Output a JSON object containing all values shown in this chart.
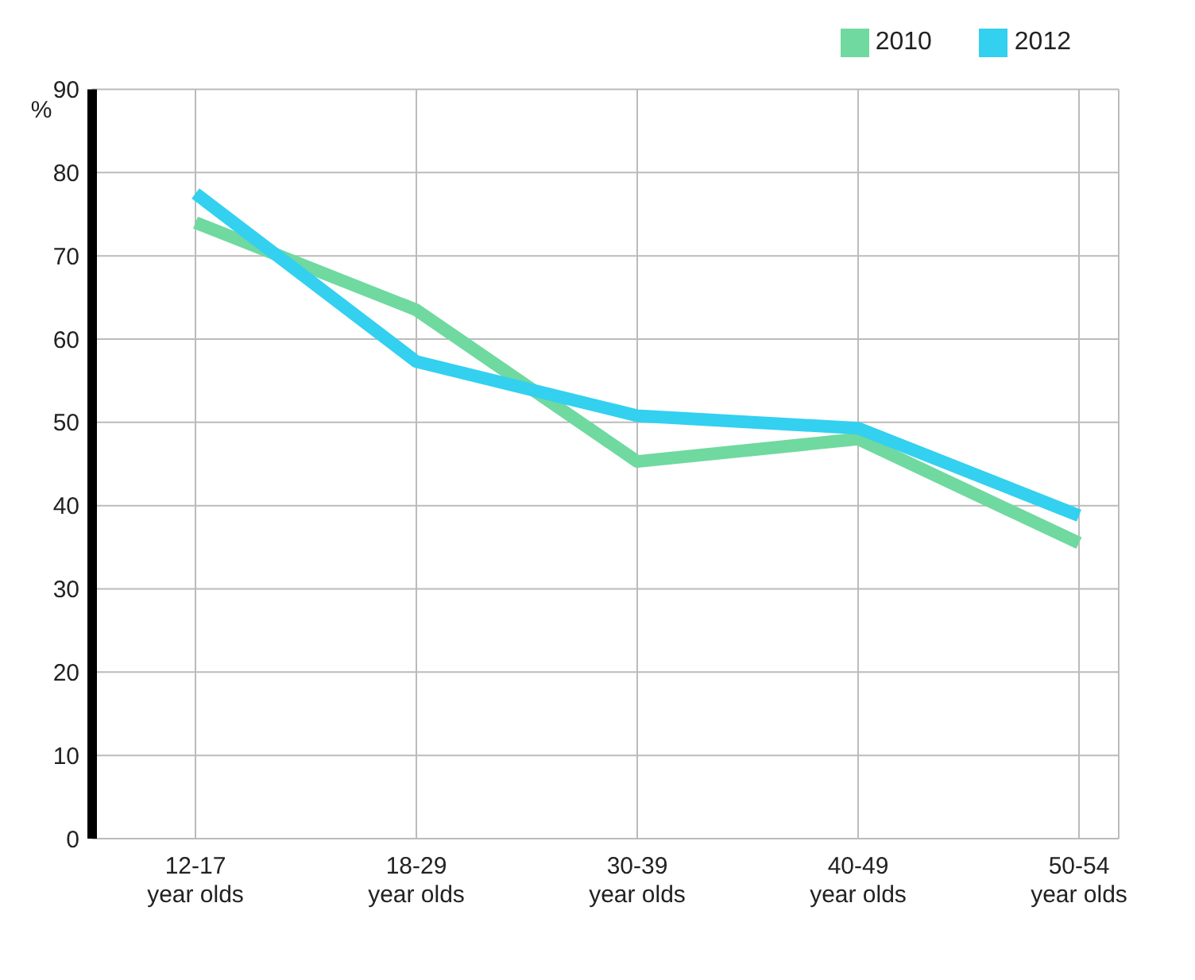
{
  "chart_data": {
    "type": "line",
    "ylabel": "%",
    "categories": [
      "12-17 year olds",
      "18-29 year olds",
      "30-39 year olds",
      "40-49 year olds",
      "50-54 year olds"
    ],
    "series": [
      {
        "name": "2010",
        "color": "#6fd9a0",
        "values": [
          74,
          63.5,
          45.3,
          48,
          35.5
        ]
      },
      {
        "name": "2012",
        "color": "#33d0f0",
        "values": [
          77.5,
          57.3,
          50.8,
          49.3,
          38.8
        ]
      }
    ],
    "ylim": [
      0,
      90
    ],
    "yticks": [
      0,
      10,
      20,
      30,
      40,
      50,
      60,
      70,
      80,
      90
    ],
    "grid": true,
    "legend": "top right",
    "marker": "none",
    "line_style": "solid"
  }
}
